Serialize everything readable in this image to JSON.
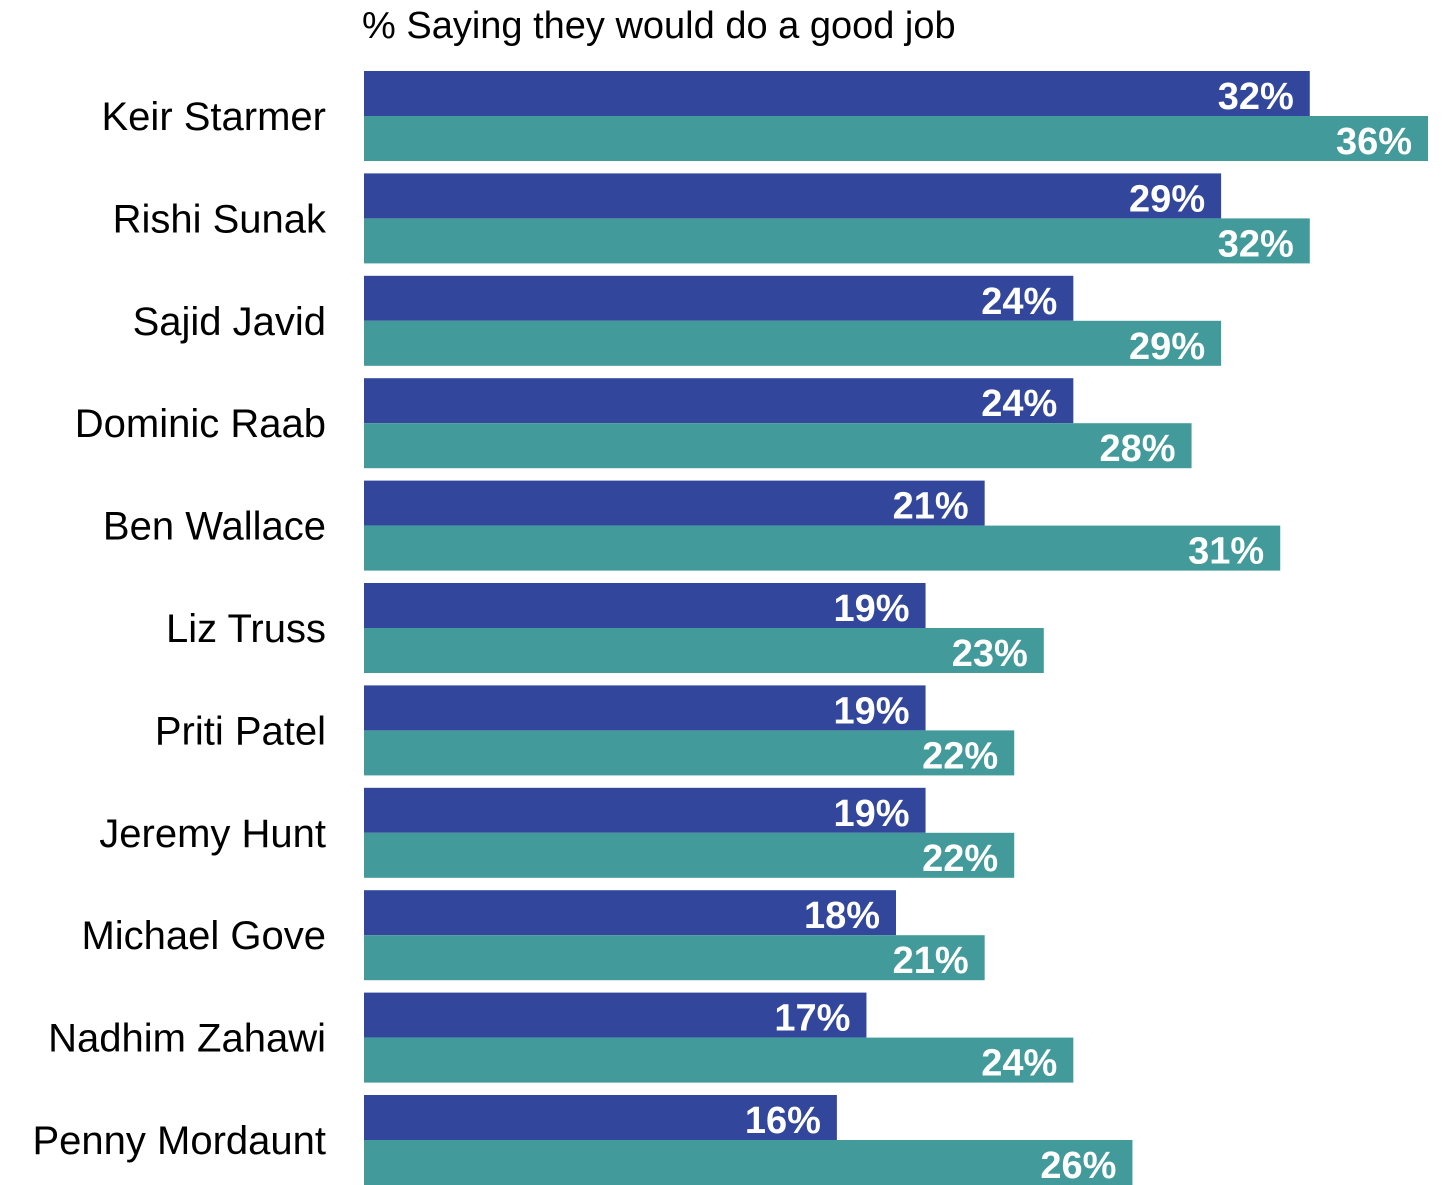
{
  "chart_data": {
    "type": "bar",
    "orientation": "horizontal",
    "title": "% Saying they would do a good job",
    "categories": [
      "Keir Starmer",
      "Rishi Sunak",
      "Sajid Javid",
      "Dominic Raab",
      "Ben Wallace",
      "Liz Truss",
      "Priti Patel",
      "Jeremy Hunt",
      "Michael Gove",
      "Nadhim Zahawi",
      "Penny Mordaunt"
    ],
    "series": [
      {
        "color": "#32479b",
        "values": [
          32,
          29,
          24,
          24,
          21,
          19,
          19,
          19,
          18,
          17,
          16
        ],
        "labels": [
          "32%",
          "29%",
          "24%",
          "24%",
          "21%",
          "19%",
          "19%",
          "19%",
          "18%",
          "17%",
          "16%"
        ]
      },
      {
        "color": "#439a9a",
        "values": [
          36,
          32,
          29,
          28,
          31,
          23,
          22,
          22,
          21,
          24,
          26
        ],
        "labels": [
          "36%",
          "32%",
          "29%",
          "28%",
          "31%",
          "23%",
          "22%",
          "22%",
          "21%",
          "24%",
          "26%"
        ]
      }
    ],
    "xlim": [
      0,
      36
    ],
    "grid": false,
    "legend": "none"
  }
}
